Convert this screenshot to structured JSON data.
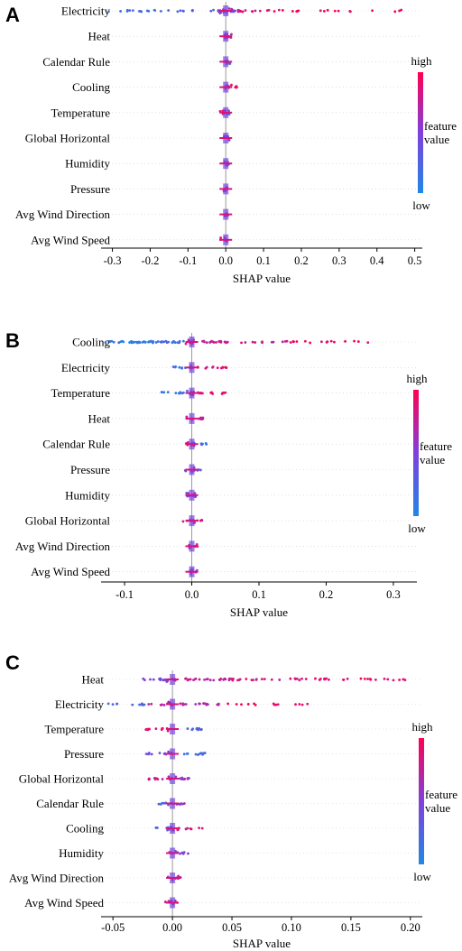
{
  "color_scale": {
    "low": "#1e88e5",
    "high": "#ff0052"
  },
  "colorbar": {
    "high_label": "high",
    "low_label": "low",
    "title_line1": "feature",
    "title_line2": "value"
  },
  "chart_data": [
    {
      "type": "scatter",
      "panel_label": "A",
      "xlabel": "SHAP value",
      "xlim": [
        -0.33,
        0.52
      ],
      "xticks": [
        -0.3,
        -0.2,
        -0.1,
        0.0,
        0.1,
        0.2,
        0.3,
        0.4,
        0.5
      ],
      "xtick_labels": [
        "-0.3",
        "-0.2",
        "-0.1",
        "0.0",
        "0.1",
        "0.2",
        "0.3",
        "0.4",
        "0.5"
      ],
      "features": [
        {
          "name": "Electricity",
          "clusters": [
            [
              -0.31,
              -0.16,
              0.15,
              14
            ],
            [
              -0.16,
              -0.02,
              0.25,
              10
            ],
            [
              -0.02,
              0.04,
              0.55,
              26
            ],
            [
              0.02,
              0.1,
              0.85,
              8
            ],
            [
              0.1,
              0.48,
              0.95,
              20
            ]
          ]
        },
        {
          "name": "Heat",
          "clusters": [
            [
              -0.005,
              0.015,
              0.7,
              10
            ]
          ]
        },
        {
          "name": "Calendar Rule",
          "clusters": [
            [
              -0.005,
              0.005,
              0.7,
              6
            ],
            [
              0.0,
              0.015,
              0.2,
              5
            ]
          ]
        },
        {
          "name": "Cooling",
          "clusters": [
            [
              -0.005,
              0.005,
              0.5,
              6
            ],
            [
              0.005,
              0.03,
              0.9,
              8
            ]
          ]
        },
        {
          "name": "Temperature",
          "clusters": [
            [
              -0.02,
              0.0,
              0.85,
              6
            ],
            [
              0.0,
              0.01,
              0.3,
              5
            ]
          ]
        },
        {
          "name": "Global Horizontal",
          "clusters": [
            [
              -0.005,
              0.01,
              0.6,
              8
            ]
          ]
        },
        {
          "name": "Humidity",
          "clusters": [
            [
              -0.005,
              0.008,
              0.5,
              8
            ]
          ]
        },
        {
          "name": "Pressure",
          "clusters": [
            [
              -0.005,
              0.008,
              0.6,
              8
            ]
          ]
        },
        {
          "name": "Avg Wind Direction",
          "clusters": [
            [
              -0.004,
              0.006,
              0.7,
              8
            ]
          ]
        },
        {
          "name": "Avg Wind Speed",
          "clusters": [
            [
              -0.03,
              -0.01,
              0.9,
              2
            ],
            [
              -0.005,
              0.005,
              0.5,
              8
            ]
          ]
        }
      ]
    },
    {
      "type": "scatter",
      "panel_label": "B",
      "xlabel": "SHAP value",
      "xlim": [
        -0.135,
        0.335
      ],
      "xticks": [
        -0.1,
        0.0,
        0.1,
        0.2,
        0.3
      ],
      "xtick_labels": [
        "-0.1",
        "0.0",
        "0.1",
        "0.2",
        "0.3"
      ],
      "features": [
        {
          "name": "Cooling",
          "clusters": [
            [
              -0.13,
              -0.06,
              0.1,
              30
            ],
            [
              -0.06,
              -0.01,
              0.2,
              20
            ],
            [
              -0.01,
              0.05,
              0.8,
              24
            ],
            [
              0.05,
              0.15,
              0.75,
              14
            ],
            [
              0.15,
              0.29,
              0.95,
              14
            ]
          ]
        },
        {
          "name": "Electricity",
          "clusters": [
            [
              -0.03,
              0.0,
              0.2,
              10
            ],
            [
              0.0,
              0.06,
              0.85,
              14
            ]
          ]
        },
        {
          "name": "Temperature",
          "clusters": [
            [
              -0.045,
              0.0,
              0.15,
              14
            ],
            [
              0.0,
              0.055,
              0.9,
              14
            ]
          ]
        },
        {
          "name": "Heat",
          "clusters": [
            [
              -0.01,
              0.018,
              0.75,
              10
            ]
          ]
        },
        {
          "name": "Calendar Rule",
          "clusters": [
            [
              -0.012,
              0.005,
              0.8,
              8
            ],
            [
              0.0,
              0.022,
              0.15,
              8
            ]
          ]
        },
        {
          "name": "Pressure",
          "clusters": [
            [
              -0.01,
              0.016,
              0.35,
              10
            ]
          ]
        },
        {
          "name": "Humidity",
          "clusters": [
            [
              -0.01,
              0.012,
              0.55,
              10
            ]
          ]
        },
        {
          "name": "Global Horizontal",
          "clusters": [
            [
              -0.015,
              0.02,
              0.75,
              12
            ]
          ]
        },
        {
          "name": "Avg Wind Direction",
          "clusters": [
            [
              -0.006,
              0.012,
              0.75,
              8
            ]
          ]
        },
        {
          "name": "Avg Wind Speed",
          "clusters": [
            [
              -0.008,
              0.008,
              0.6,
              8
            ]
          ]
        }
      ]
    },
    {
      "type": "scatter",
      "panel_label": "C",
      "xlabel": "SHAP value",
      "xlim": [
        -0.06,
        0.21
      ],
      "xticks": [
        -0.05,
        0.0,
        0.05,
        0.1,
        0.15,
        0.2
      ],
      "xtick_labels": [
        "-0.05",
        "0.00",
        "0.05",
        "0.10",
        "0.15",
        "0.20"
      ],
      "features": [
        {
          "name": "Heat",
          "clusters": [
            [
              -0.025,
              0.0,
              0.5,
              18
            ],
            [
              0.0,
              0.05,
              0.75,
              30
            ],
            [
              0.05,
              0.11,
              0.8,
              20
            ],
            [
              0.11,
              0.197,
              0.92,
              24
            ]
          ]
        },
        {
          "name": "Electricity",
          "clusters": [
            [
              -0.058,
              -0.02,
              0.25,
              10
            ],
            [
              -0.02,
              0.04,
              0.7,
              28
            ],
            [
              0.04,
              0.115,
              0.9,
              14
            ]
          ]
        },
        {
          "name": "Temperature",
          "clusters": [
            [
              -0.025,
              0.0,
              0.9,
              12
            ],
            [
              0.0,
              0.025,
              0.25,
              10
            ]
          ]
        },
        {
          "name": "Pressure",
          "clusters": [
            [
              -0.022,
              0.0,
              0.4,
              12
            ],
            [
              0.0,
              0.03,
              0.2,
              12
            ]
          ]
        },
        {
          "name": "Global Horizontal",
          "clusters": [
            [
              -0.022,
              0.0,
              0.8,
              12
            ],
            [
              0.0,
              0.017,
              0.6,
              10
            ]
          ]
        },
        {
          "name": "Calendar Rule",
          "clusters": [
            [
              -0.012,
              0.0,
              0.2,
              8
            ],
            [
              0.0,
              0.012,
              0.6,
              8
            ]
          ]
        },
        {
          "name": "Cooling",
          "clusters": [
            [
              -0.015,
              0.0,
              0.25,
              8
            ],
            [
              0.0,
              0.03,
              0.85,
              10
            ]
          ]
        },
        {
          "name": "Humidity",
          "clusters": [
            [
              -0.01,
              0.016,
              0.5,
              10
            ]
          ]
        },
        {
          "name": "Avg Wind Direction",
          "clusters": [
            [
              -0.008,
              0.008,
              0.75,
              8
            ]
          ]
        },
        {
          "name": "Avg Wind Speed",
          "clusters": [
            [
              -0.008,
              0.006,
              0.8,
              8
            ]
          ]
        }
      ]
    }
  ]
}
